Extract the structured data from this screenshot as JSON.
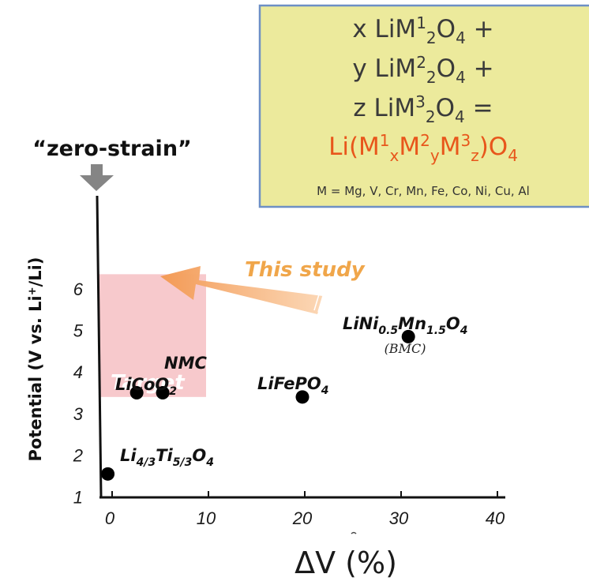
{
  "chart_data": {
    "type": "scatter",
    "xlabel": "ΔV (%)",
    "ylabel": "Potential (V vs. Li⁺/Li)",
    "xlim": [
      -1,
      41
    ],
    "ylim": [
      0.3,
      6.5
    ],
    "x_ticks": [
      "0",
      "10",
      "20",
      "30",
      "40"
    ],
    "y_ticks": [
      "1",
      "2",
      "3",
      "4",
      "5",
      "6"
    ],
    "points": [
      {
        "x": -0.2,
        "y": 1.55,
        "label": "Li4/3Ti5/3O4"
      },
      {
        "x": 2.8,
        "y": 3.5,
        "label": "LiCoO2"
      },
      {
        "x": 5.5,
        "y": 3.5,
        "label": "NMC"
      },
      {
        "x": 20.0,
        "y": 3.4,
        "label": "LiFePO4"
      },
      {
        "x": 31.0,
        "y": 4.85,
        "label": "LiNi0.5Mn1.5O4",
        "note": "(BMC)"
      }
    ],
    "target_region": {
      "x": [
        0,
        10
      ],
      "y": [
        3.4,
        6.35
      ],
      "label": "Target"
    },
    "arrow_label": "This study",
    "callout": "“zero-strain”",
    "formula": {
      "lines": [
        "x LiM¹₂O₄ +",
        "y LiM²₂O₄ +",
        "z LiM³₂O₄ ="
      ],
      "result": "Li(M¹ₓM²ᵧM³_z)O₄",
      "note": "M = Mg, V, Cr, Mn, Fe, Co, Ni, Cu, Al"
    },
    "colors": {
      "target": "#f7c9cc",
      "arrow": "#f6a86a",
      "box": "#ecea9c",
      "box_border": "#6d8fc5",
      "result": "#e8561b"
    }
  }
}
